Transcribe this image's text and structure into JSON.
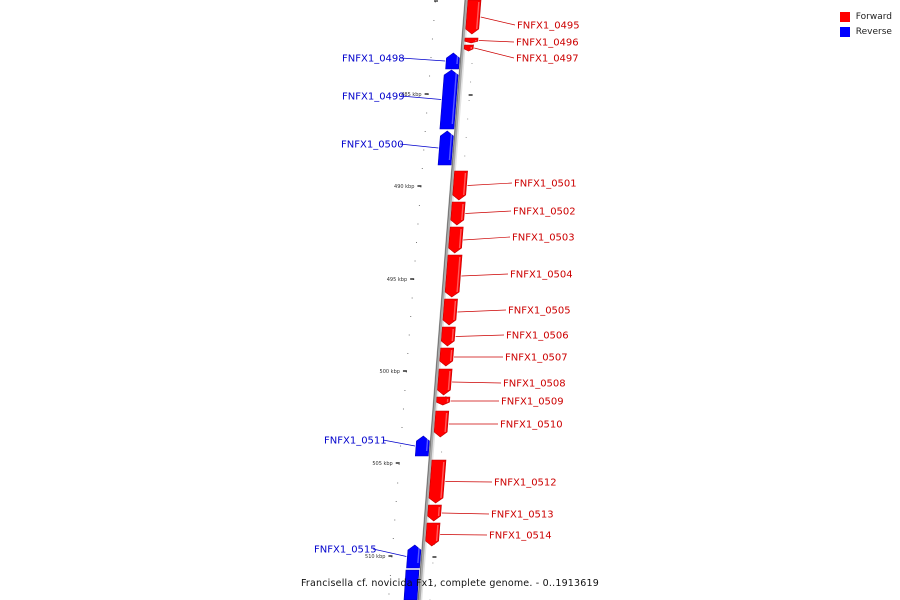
{
  "colors": {
    "forward": "#ff0000",
    "reverse": "#0000ff",
    "backbone": "#aaaaaa"
  },
  "legend": [
    {
      "label": "Forward",
      "color": "#ff0000"
    },
    {
      "label": "Reverse",
      "color": "#0000ff"
    }
  ],
  "caption": "Francisella cf. novicida Fx1, complete genome. - 0..1913619",
  "ticks": [
    "485 kbp",
    "490 kbp",
    "495 kbp",
    "500 kbp",
    "505 kbp",
    "510 kbp"
  ],
  "genes": [
    {
      "name": "FNFX1_0495",
      "strand": "forward"
    },
    {
      "name": "FNFX1_0496",
      "strand": "forward"
    },
    {
      "name": "FNFX1_0497",
      "strand": "forward"
    },
    {
      "name": "FNFX1_0498",
      "strand": "reverse"
    },
    {
      "name": "FNFX1_0499",
      "strand": "reverse"
    },
    {
      "name": "FNFX1_0500",
      "strand": "reverse"
    },
    {
      "name": "FNFX1_0501",
      "strand": "forward"
    },
    {
      "name": "FNFX1_0502",
      "strand": "forward"
    },
    {
      "name": "FNFX1_0503",
      "strand": "forward"
    },
    {
      "name": "FNFX1_0504",
      "strand": "forward"
    },
    {
      "name": "FNFX1_0505",
      "strand": "forward"
    },
    {
      "name": "FNFX1_0506",
      "strand": "forward"
    },
    {
      "name": "FNFX1_0507",
      "strand": "forward"
    },
    {
      "name": "FNFX1_0508",
      "strand": "forward"
    },
    {
      "name": "FNFX1_0509",
      "strand": "forward"
    },
    {
      "name": "FNFX1_0510",
      "strand": "forward"
    },
    {
      "name": "FNFX1_0511",
      "strand": "reverse"
    },
    {
      "name": "FNFX1_0512",
      "strand": "forward"
    },
    {
      "name": "FNFX1_0513",
      "strand": "forward"
    },
    {
      "name": "FNFX1_0514",
      "strand": "forward"
    },
    {
      "name": "FNFX1_0515",
      "strand": "reverse"
    }
  ]
}
